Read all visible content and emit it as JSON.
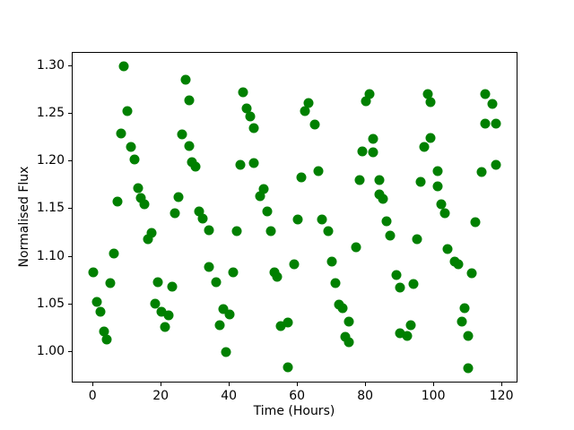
{
  "figure": {
    "background_color": "#ffffff",
    "axis_color": "#000000"
  },
  "chart_data": {
    "type": "scatter",
    "title": "",
    "xlabel": "Time (Hours)",
    "ylabel": "Normalised Flux",
    "grid": false,
    "legend": "none",
    "marker_color": "#008000",
    "xlim": [
      -6.1,
      124.7
    ],
    "ylim": [
      0.967,
      1.314
    ],
    "xticks": [
      0,
      20,
      40,
      60,
      80,
      100,
      120
    ],
    "yticks": [
      1.0,
      1.05,
      1.1,
      1.15,
      1.2,
      1.25,
      1.3
    ],
    "points": [
      [
        0,
        1.084
      ],
      [
        1,
        1.053
      ],
      [
        2,
        1.042
      ],
      [
        3,
        1.022
      ],
      [
        4,
        1.013
      ],
      [
        5,
        1.072
      ],
      [
        6,
        1.103
      ],
      [
        7,
        1.158
      ],
      [
        8,
        1.229
      ],
      [
        9,
        1.3
      ],
      [
        10,
        1.253
      ],
      [
        11,
        1.215
      ],
      [
        12,
        1.202
      ],
      [
        13,
        1.172
      ],
      [
        14,
        1.162
      ],
      [
        15,
        1.155
      ],
      [
        16,
        1.118
      ],
      [
        17,
        1.125
      ],
      [
        18,
        1.051
      ],
      [
        19,
        1.073
      ],
      [
        20,
        1.042
      ],
      [
        21,
        1.026
      ],
      [
        22,
        1.038
      ],
      [
        23,
        1.069
      ],
      [
        24,
        1.146
      ],
      [
        25,
        1.163
      ],
      [
        26,
        1.228
      ],
      [
        27,
        1.286
      ],
      [
        28,
        1.264
      ],
      [
        28,
        1.216
      ],
      [
        29,
        1.199
      ],
      [
        30,
        1.195
      ],
      [
        31,
        1.148
      ],
      [
        32,
        1.14
      ],
      [
        34,
        1.128
      ],
      [
        34,
        1.089
      ],
      [
        36,
        1.073
      ],
      [
        37,
        1.028
      ],
      [
        38,
        1.045
      ],
      [
        39,
        1.0
      ],
      [
        40,
        1.039
      ],
      [
        41,
        1.084
      ],
      [
        42,
        1.127
      ],
      [
        43,
        1.196
      ],
      [
        44,
        1.273
      ],
      [
        45,
        1.256
      ],
      [
        46,
        1.247
      ],
      [
        47,
        1.235
      ],
      [
        47,
        1.198
      ],
      [
        49,
        1.164
      ],
      [
        50,
        1.171
      ],
      [
        51,
        1.148
      ],
      [
        52,
        1.127
      ],
      [
        53,
        1.084
      ],
      [
        54,
        1.079
      ],
      [
        55,
        1.027
      ],
      [
        57,
        1.031
      ],
      [
        57,
        0.984
      ],
      [
        59,
        1.092
      ],
      [
        60,
        1.139
      ],
      [
        61,
        1.183
      ],
      [
        62,
        1.253
      ],
      [
        63,
        1.261
      ],
      [
        65,
        1.239
      ],
      [
        66,
        1.19
      ],
      [
        67,
        1.139
      ],
      [
        69,
        1.127
      ],
      [
        70,
        1.095
      ],
      [
        71,
        1.072
      ],
      [
        72,
        1.05
      ],
      [
        73,
        1.046
      ],
      [
        74,
        1.016
      ],
      [
        75,
        1.032
      ],
      [
        75,
        1.01
      ],
      [
        77,
        1.11
      ],
      [
        78,
        1.18
      ],
      [
        79,
        1.211
      ],
      [
        80,
        1.263
      ],
      [
        81,
        1.271
      ],
      [
        82,
        1.224
      ],
      [
        82,
        1.21
      ],
      [
        84,
        1.18
      ],
      [
        84,
        1.165
      ],
      [
        85,
        1.161
      ],
      [
        86,
        1.137
      ],
      [
        87,
        1.122
      ],
      [
        89,
        1.081
      ],
      [
        90,
        1.068
      ],
      [
        90,
        1.02
      ],
      [
        92,
        1.017
      ],
      [
        93,
        1.028
      ],
      [
        94,
        1.071
      ],
      [
        95,
        1.118
      ],
      [
        96,
        1.179
      ],
      [
        97,
        1.215
      ],
      [
        98,
        1.271
      ],
      [
        99,
        1.262
      ],
      [
        99,
        1.225
      ],
      [
        101,
        1.19
      ],
      [
        101,
        1.174
      ],
      [
        102,
        1.155
      ],
      [
        103,
        1.146
      ],
      [
        104,
        1.108
      ],
      [
        106,
        1.095
      ],
      [
        107,
        1.092
      ],
      [
        108,
        1.032
      ],
      [
        109,
        1.046
      ],
      [
        110,
        1.017
      ],
      [
        110,
        0.983
      ],
      [
        111,
        1.083
      ],
      [
        112,
        1.136
      ],
      [
        114,
        1.189
      ],
      [
        115,
        1.271
      ],
      [
        115,
        1.24
      ],
      [
        117,
        1.26
      ],
      [
        118,
        1.24
      ],
      [
        118,
        1.196
      ]
    ]
  }
}
